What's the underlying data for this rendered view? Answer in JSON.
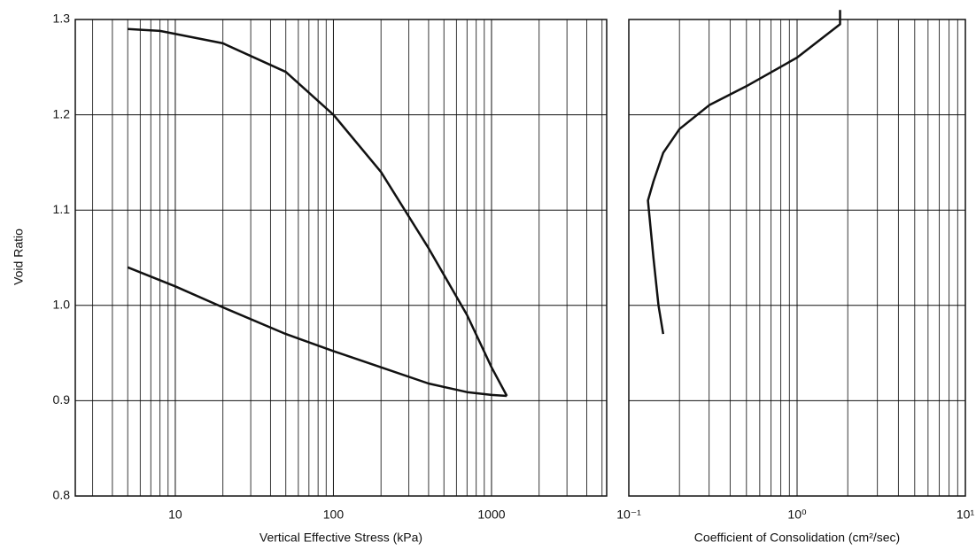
{
  "chart_data": [
    {
      "type": "line",
      "x_label": "Vertical Effective Stress (kPa)",
      "y_label": "Void Ratio",
      "log_x": true,
      "grid": true,
      "color": "#111111",
      "xlim": [
        2.33,
        5350
      ],
      "xticks": [
        10,
        100,
        1000
      ],
      "ylim": [
        0.8,
        1.3
      ],
      "yticks": [
        0.8,
        0.9,
        {
          "value": 1,
          "label": "1.0"
        },
        1.1,
        1.2,
        1.3
      ],
      "series": [
        {
          "x": [
            5,
            8,
            20,
            50,
            100,
            200,
            400,
            700,
            1000,
            1250
          ],
          "values": [
            1.29,
            1.288,
            1.275,
            1.245,
            1.2,
            1.14,
            1.06,
            0.99,
            0.935,
            0.905
          ]
        },
        {
          "x": [
            5,
            10,
            20,
            50,
            100,
            200,
            400,
            700,
            1000,
            1250
          ],
          "values": [
            1.04,
            1.02,
            0.998,
            0.97,
            0.952,
            0.935,
            0.918,
            0.909,
            0.906,
            0.905
          ]
        }
      ]
    },
    {
      "type": "line",
      "x_label": "Coefficient of Consolidation (cm²/sec)",
      "log_x": true,
      "grid": true,
      "sharey": true,
      "color": "#111111",
      "xlim": [
        0.1,
        10
      ],
      "xticks": [
        {
          "value": 0.1,
          "label": "10⁻¹"
        },
        {
          "value": 1,
          "label": "10⁰"
        },
        {
          "value": 10,
          "label": "10¹"
        }
      ],
      "series": [
        {
          "x": [
            1.8,
            1.8,
            1.0,
            0.5,
            0.3,
            0.2,
            0.16,
            0.14,
            0.13,
            0.14,
            0.15,
            0.16
          ],
          "values": [
            1.31,
            1.295,
            1.26,
            1.23,
            1.21,
            1.185,
            1.16,
            1.13,
            1.11,
            1.05,
            1.0,
            0.97
          ]
        }
      ]
    }
  ]
}
